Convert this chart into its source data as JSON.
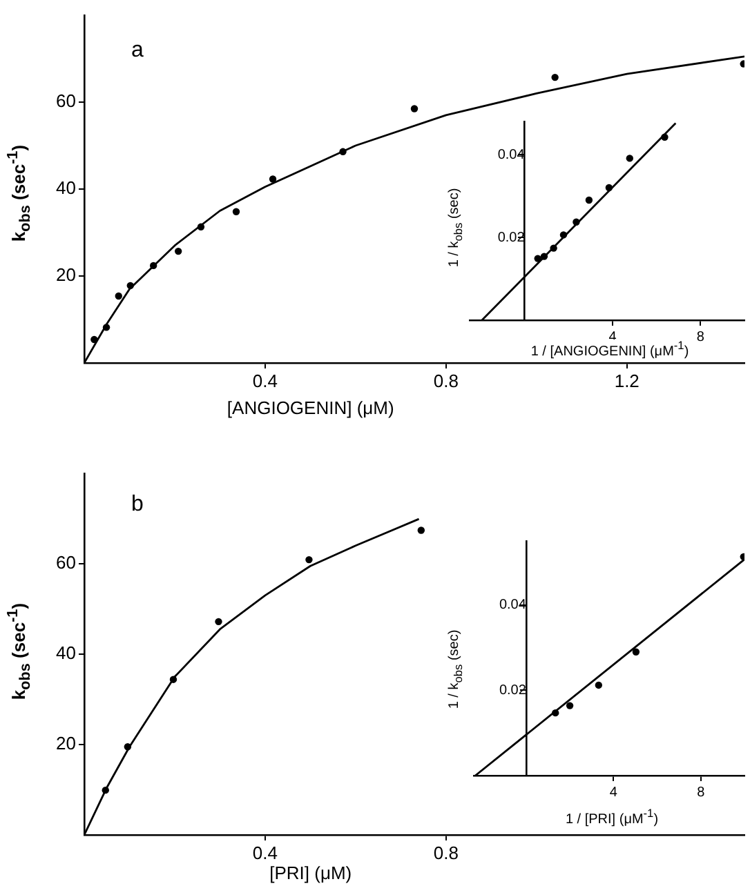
{
  "chart_data": [
    {
      "type": "scatter",
      "annotations": [
        "a"
      ],
      "xlabel": "[ANGIOGENIN] (μM)",
      "ylabel": "k$_{obs}$ (sec$^{-1}$)",
      "xlim": [
        0,
        1.46
      ],
      "ylim": [
        0,
        80
      ],
      "xticks": [
        0.4,
        0.8,
        1.2
      ],
      "yticks": [
        20,
        40,
        60
      ],
      "grid": false,
      "marker": "circle",
      "series": [
        {
          "type": "scatter",
          "color": "#000000",
          "x": [
            0.022,
            0.049,
            0.076,
            0.102,
            0.153,
            0.208,
            0.258,
            0.336,
            0.417,
            0.572,
            0.73,
            1.041,
            1.458
          ],
          "values": [
            5.4,
            8.2,
            15.4,
            17.8,
            22.4,
            25.7,
            31.3,
            34.8,
            42.3,
            48.6,
            58.5,
            65.7,
            68.8
          ]
        },
        {
          "type": "line",
          "marker": "none",
          "color": "#000000",
          "x": [
            0,
            0.05,
            0.1,
            0.2,
            0.3,
            0.4,
            0.6,
            0.8,
            1.0,
            1.2,
            1.46
          ],
          "values": [
            0,
            9,
            17,
            27,
            35,
            40.5,
            50,
            57,
            62,
            66.5,
            70.5
          ]
        }
      ]
    },
    {
      "type": "scatter",
      "xlabel": "1 / [ANGIOGENIN] (μM$^{-1}$)",
      "ylabel": "1 / k$_{obs}$ (sec)",
      "xlim": [
        -2.5,
        10
      ],
      "ylim": [
        0,
        0.048
      ],
      "xticks": [
        4,
        8
      ],
      "yticks": [
        0.02,
        0.04
      ],
      "grid": false,
      "marker": "circle",
      "series": [
        {
          "type": "scatter",
          "color": "#000000",
          "x": [
            0.6,
            0.89,
            1.32,
            1.77,
            2.35,
            2.93,
            3.84,
            4.78,
            6.37
          ],
          "values": [
            0.0149,
            0.0154,
            0.0174,
            0.0206,
            0.0237,
            0.029,
            0.032,
            0.0391,
            0.0442
          ]
        },
        {
          "type": "line",
          "marker": "none",
          "color": "#000000",
          "x": [
            -1.94,
            6.87
          ],
          "values": [
            0,
            0.0476
          ]
        }
      ]
    },
    {
      "type": "scatter",
      "annotations": [
        "b"
      ],
      "xlabel": "[PRI] (μM)",
      "ylabel": "k$_{obs}$ (sec$^{-1}$)",
      "xlim": [
        0,
        1.46
      ],
      "ylim": [
        0,
        80
      ],
      "xticks": [
        0.4,
        0.8
      ],
      "yticks": [
        20,
        40,
        60
      ],
      "grid": false,
      "marker": "circle",
      "series": [
        {
          "type": "scatter",
          "color": "#000000",
          "x": [
            0.047,
            0.096,
            0.197,
            0.297,
            0.497,
            0.745
          ],
          "values": [
            9.9,
            19.5,
            34.4,
            47.2,
            60.9,
            67.4
          ]
        },
        {
          "type": "line",
          "marker": "none",
          "color": "#000000",
          "x": [
            0,
            0.05,
            0.1,
            0.2,
            0.3,
            0.4,
            0.5,
            0.6,
            0.74
          ],
          "values": [
            0,
            10.5,
            19.5,
            35,
            45.5,
            53,
            59.5,
            64,
            69.9
          ]
        }
      ]
    },
    {
      "type": "scatter",
      "xlabel": "1 / [PRI] (μM$^{-1}$)",
      "ylabel": "1 / k$_{obs}$ (sec)",
      "xlim": [
        -2.4,
        10
      ],
      "ylim": [
        0,
        0.055
      ],
      "xticks": [
        4,
        8
      ],
      "yticks": [
        0.02,
        0.04
      ],
      "grid": false,
      "marker": "circle",
      "series": [
        {
          "type": "scatter",
          "color": "#000000",
          "x": [
            1.34,
            2.0,
            3.32,
            5.03,
            9.96
          ],
          "values": [
            0.0147,
            0.0164,
            0.0212,
            0.029,
            0.0513
          ]
        },
        {
          "type": "line",
          "marker": "none",
          "color": "#000000",
          "x": [
            -2.33,
            9.98
          ],
          "values": [
            0,
            0.0506
          ]
        }
      ]
    }
  ]
}
